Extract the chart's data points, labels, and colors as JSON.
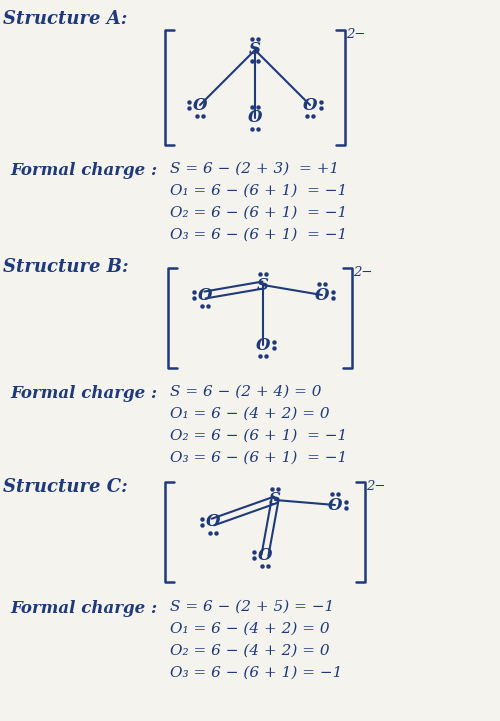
{
  "bg_color": "#f5f3ee",
  "ink_color": "#1e3a7a",
  "struct_A_formal": [
    "S = 6 − (2 + 3)  = +1",
    "O₁ = 6 − (6 + 1)  = −1",
    "O₂ = 6 − (6 + 1)  = −1",
    "O₃ = 6 − (6 + 1)  = −1"
  ],
  "struct_B_formal": [
    "S = 6 − (2 + 4) = 0",
    "O₁ = 6 − (4 + 2) = 0",
    "O₂ = 6 − (6 + 1)  = −1",
    "O₃ = 6 − (6 + 1)  = −1"
  ],
  "struct_C_formal": [
    "S = 6 − (2 + 5) = −1",
    "O₁ = 6 − (4 + 2) = 0",
    "O₂ = 6 − (4 + 2) = 0",
    "O₃ = 6 − (6 + 1) = −1"
  ]
}
